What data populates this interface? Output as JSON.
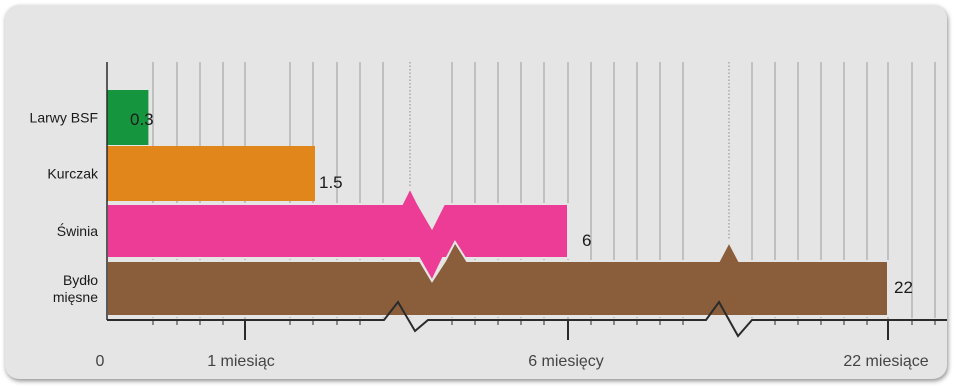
{
  "chart_data": {
    "type": "bar",
    "orientation": "horizontal",
    "axis_break": true,
    "grid": "vertical",
    "categories": [
      "Larwy BSF",
      "Kurczak",
      "Świnia",
      "Bydło mięsne"
    ],
    "category_lines": [
      [
        "Larwy BSF"
      ],
      [
        "Kurczak"
      ],
      [
        "Świnia"
      ],
      [
        "Bydło",
        "mięsne"
      ]
    ],
    "values": [
      0.3,
      1.5,
      6,
      22
    ],
    "value_labels": [
      "0.3",
      "1.5",
      "6",
      "22"
    ],
    "colors": [
      "#16953f",
      "#e0861a",
      "#ec3c96",
      "#8b5e3b"
    ],
    "x_tick_labels": [
      "0",
      "1 miesiąc",
      "6 miesięcy",
      "22 miesiące"
    ],
    "x_tick_values": [
      0,
      1,
      6,
      22
    ],
    "xlabel": "",
    "ylabel": "",
    "title": ""
  }
}
